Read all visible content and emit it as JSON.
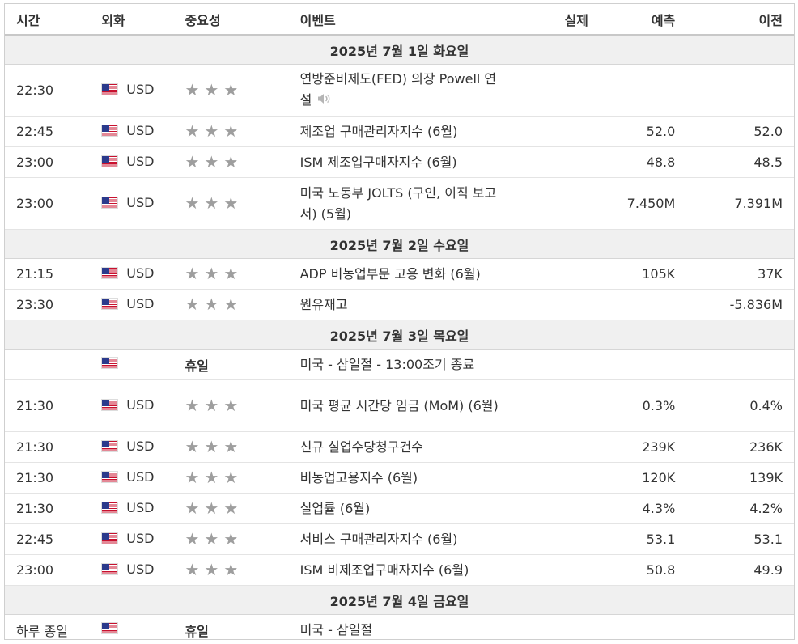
{
  "header": {
    "time": "시간",
    "currency": "외화",
    "importance": "중요성",
    "event": "이벤트",
    "actual": "실제",
    "forecast": "예측",
    "previous": "이전"
  },
  "days": [
    {
      "label": "2025년 7월 1일 화요일",
      "events": [
        {
          "time": "22:30",
          "currency": "USD",
          "importance": 3,
          "holiday": "",
          "event": "연방준비제도(FED) 의장 Powell 연설",
          "speech": true,
          "actual": "",
          "forecast": "",
          "previous": ""
        },
        {
          "time": "22:45",
          "currency": "USD",
          "importance": 3,
          "holiday": "",
          "event": "제조업 구매관리자지수 (6월)",
          "speech": false,
          "actual": "",
          "forecast": "52.0",
          "previous": "52.0"
        },
        {
          "time": "23:00",
          "currency": "USD",
          "importance": 3,
          "holiday": "",
          "event": "ISM 제조업구매자지수 (6월)",
          "speech": false,
          "actual": "",
          "forecast": "48.8",
          "previous": "48.5"
        },
        {
          "time": "23:00",
          "currency": "USD",
          "importance": 3,
          "holiday": "",
          "event": "미국 노동부 JOLTS (구인, 이직 보고서) (5월)",
          "speech": false,
          "actual": "",
          "forecast": "7.450M",
          "previous": "7.391M"
        }
      ]
    },
    {
      "label": "2025년 7월 2일 수요일",
      "events": [
        {
          "time": "21:15",
          "currency": "USD",
          "importance": 3,
          "holiday": "",
          "event": "ADP 비농업부문 고용 변화 (6월)",
          "speech": false,
          "actual": "",
          "forecast": "105K",
          "previous": "37K"
        },
        {
          "time": "23:30",
          "currency": "USD",
          "importance": 3,
          "holiday": "",
          "event": "원유재고",
          "speech": false,
          "actual": "",
          "forecast": "",
          "previous": "-5.836M"
        }
      ]
    },
    {
      "label": "2025년 7월 3일 목요일",
      "events": [
        {
          "time": "",
          "currency": "",
          "importance": 0,
          "holiday": "휴일",
          "event": "미국 - 삼일절 - 13:00조기 종료",
          "speech": false,
          "actual": "",
          "forecast": "",
          "previous": ""
        },
        {
          "time": "21:30",
          "currency": "USD",
          "importance": 3,
          "holiday": "",
          "event": "미국 평균 시간당 임금 (MoM) (6월)",
          "speech": false,
          "actual": "",
          "forecast": "0.3%",
          "previous": "0.4%"
        },
        {
          "time": "21:30",
          "currency": "USD",
          "importance": 3,
          "holiday": "",
          "event": "신규 실업수당청구건수",
          "speech": false,
          "actual": "",
          "forecast": "239K",
          "previous": "236K"
        },
        {
          "time": "21:30",
          "currency": "USD",
          "importance": 3,
          "holiday": "",
          "event": "비농업고용지수 (6월)",
          "speech": false,
          "actual": "",
          "forecast": "120K",
          "previous": "139K"
        },
        {
          "time": "21:30",
          "currency": "USD",
          "importance": 3,
          "holiday": "",
          "event": "실업률 (6월)",
          "speech": false,
          "actual": "",
          "forecast": "4.3%",
          "previous": "4.2%"
        },
        {
          "time": "22:45",
          "currency": "USD",
          "importance": 3,
          "holiday": "",
          "event": "서비스 구매관리자지수 (6월)",
          "speech": false,
          "actual": "",
          "forecast": "53.1",
          "previous": "53.1"
        },
        {
          "time": "23:00",
          "currency": "USD",
          "importance": 3,
          "holiday": "",
          "event": "ISM 비제조업구매자지수 (6월)",
          "speech": false,
          "actual": "",
          "forecast": "50.8",
          "previous": "49.9"
        }
      ]
    },
    {
      "label": "2025년 7월 4일 금요일",
      "events": [
        {
          "time": "하루 종일",
          "currency": "",
          "importance": 0,
          "holiday": "휴일",
          "event": "미국 - 삼일절",
          "speech": false,
          "actual": "",
          "forecast": "",
          "previous": ""
        }
      ]
    }
  ],
  "icons": {
    "flag": "us-flag-icon",
    "star": "star-icon",
    "speech": "speaker-icon"
  },
  "colors": {
    "star": "#9e9e9e",
    "day_row_bg": "#f0f0f0",
    "flag_red": "#c8102e",
    "flag_blue": "#2b3a8c"
  }
}
